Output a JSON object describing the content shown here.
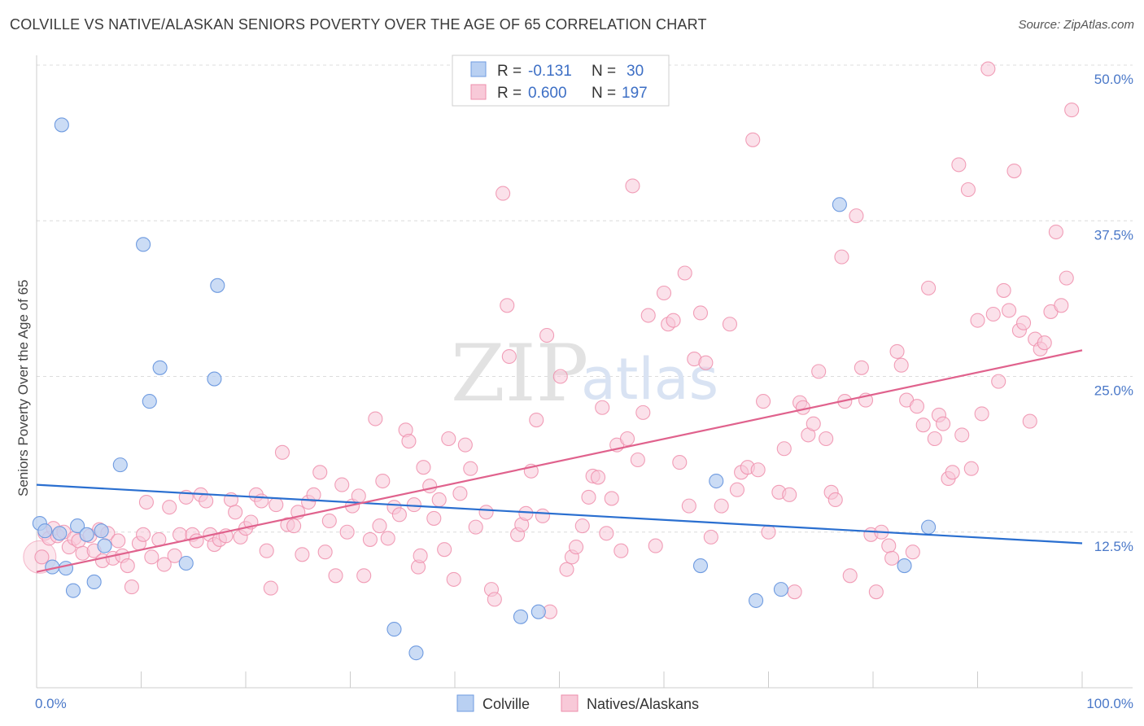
{
  "header": {
    "title": "COLVILLE VS NATIVE/ALASKAN SENIORS POVERTY OVER THE AGE OF 65 CORRELATION CHART",
    "source": "Source: ZipAtlas.com"
  },
  "watermark": {
    "zip": "ZIP",
    "atlas": "atlas"
  },
  "legend": {
    "r_label": "R =",
    "n_label": "N =",
    "rows": [
      {
        "r": "-0.131",
        "n": "30"
      },
      {
        "r": "0.600",
        "n": "197"
      }
    ]
  },
  "chart_data": {
    "type": "scatter",
    "title": "COLVILLE VS NATIVE/ALASKAN SENIORS POVERTY OVER THE AGE OF 65 CORRELATION CHART",
    "xlabel": "",
    "ylabel": "Seniors Poverty Over the Age of 65",
    "xlim": [
      0,
      100
    ],
    "ylim": [
      0,
      50
    ],
    "x_tick_labels": [
      "0.0%",
      "100.0%"
    ],
    "y_ticks": [
      12.5,
      25.0,
      37.5,
      50.0
    ],
    "y_tick_labels": [
      "12.5%",
      "25.0%",
      "37.5%",
      "50.0%"
    ],
    "grid": true,
    "legend_position": "top-center",
    "colors": {
      "colville_fill": "#b9d0f2",
      "colville_stroke": "#6f9be0",
      "colville_line": "#2a6fd0",
      "native_fill": "#f8c9d8",
      "native_stroke": "#ee8eab",
      "native_line": "#e0628d"
    },
    "series": [
      {
        "name": "Colville",
        "r": -0.131,
        "n": 30,
        "trend": {
          "x": [
            0,
            100
          ],
          "y": [
            16.3,
            11.6
          ]
        },
        "points": [
          [
            0.3,
            13.2
          ],
          [
            0.8,
            12.6
          ],
          [
            2.2,
            12.4
          ],
          [
            1.5,
            9.7
          ],
          [
            2.8,
            9.6
          ],
          [
            2.4,
            45.2
          ],
          [
            3.5,
            7.8
          ],
          [
            3.9,
            13.0
          ],
          [
            4.8,
            12.3
          ],
          [
            5.5,
            8.5
          ],
          [
            6.2,
            12.6
          ],
          [
            6.5,
            11.4
          ],
          [
            8.0,
            17.9
          ],
          [
            10.2,
            35.6
          ],
          [
            10.8,
            23.0
          ],
          [
            11.8,
            25.7
          ],
          [
            14.3,
            10.0
          ],
          [
            17.0,
            24.8
          ],
          [
            17.3,
            32.3
          ],
          [
            34.2,
            4.7
          ],
          [
            36.3,
            2.8
          ],
          [
            46.3,
            5.7
          ],
          [
            48.0,
            6.1
          ],
          [
            65.0,
            16.6
          ],
          [
            63.5,
            9.8
          ],
          [
            68.8,
            7.0
          ],
          [
            71.2,
            7.9
          ],
          [
            76.8,
            38.8
          ],
          [
            83.0,
            9.8
          ],
          [
            85.3,
            12.9
          ]
        ]
      },
      {
        "name": "Natives/Alaskans",
        "r": 0.6,
        "n": 197,
        "trend": {
          "x": [
            0,
            100
          ],
          "y": [
            9.3,
            27.1
          ]
        },
        "points": [
          [
            0.5,
            10.5
          ],
          [
            0.8,
            12.4
          ],
          [
            1.2,
            12.0
          ],
          [
            1.6,
            12.8
          ],
          [
            2.0,
            12.2
          ],
          [
            2.6,
            12.5
          ],
          [
            3.1,
            11.3
          ],
          [
            3.6,
            12.0
          ],
          [
            4.0,
            11.8
          ],
          [
            4.4,
            10.8
          ],
          [
            5.1,
            12.2
          ],
          [
            5.5,
            11.0
          ],
          [
            6.0,
            12.7
          ],
          [
            6.3,
            10.2
          ],
          [
            6.8,
            12.4
          ],
          [
            7.3,
            10.4
          ],
          [
            7.8,
            11.8
          ],
          [
            8.2,
            10.6
          ],
          [
            8.7,
            9.8
          ],
          [
            9.1,
            8.1
          ],
          [
            9.8,
            11.6
          ],
          [
            10.2,
            12.3
          ],
          [
            10.5,
            14.9
          ],
          [
            11.0,
            10.5
          ],
          [
            11.7,
            11.9
          ],
          [
            12.2,
            9.9
          ],
          [
            12.7,
            14.5
          ],
          [
            13.2,
            10.6
          ],
          [
            13.7,
            12.3
          ],
          [
            14.3,
            15.3
          ],
          [
            14.9,
            12.3
          ],
          [
            15.3,
            11.8
          ],
          [
            15.7,
            15.5
          ],
          [
            16.2,
            15.0
          ],
          [
            16.6,
            12.3
          ],
          [
            17.0,
            11.5
          ],
          [
            17.5,
            11.9
          ],
          [
            18.1,
            12.2
          ],
          [
            18.6,
            15.1
          ],
          [
            19.0,
            14.1
          ],
          [
            19.5,
            12.1
          ],
          [
            20.0,
            12.8
          ],
          [
            20.5,
            13.3
          ],
          [
            21.0,
            15.5
          ],
          [
            21.5,
            15.0
          ],
          [
            22.0,
            11.0
          ],
          [
            22.4,
            8.0
          ],
          [
            22.9,
            14.7
          ],
          [
            23.5,
            18.9
          ],
          [
            24.0,
            13.1
          ],
          [
            24.6,
            13.0
          ],
          [
            25.0,
            14.1
          ],
          [
            25.4,
            10.7
          ],
          [
            26.0,
            14.9
          ],
          [
            26.5,
            15.5
          ],
          [
            27.1,
            17.3
          ],
          [
            27.6,
            10.9
          ],
          [
            28.0,
            13.4
          ],
          [
            28.6,
            9.0
          ],
          [
            29.2,
            16.3
          ],
          [
            29.7,
            12.5
          ],
          [
            30.2,
            14.6
          ],
          [
            30.8,
            15.4
          ],
          [
            31.3,
            9.0
          ],
          [
            31.9,
            11.9
          ],
          [
            32.4,
            21.6
          ],
          [
            32.8,
            13.0
          ],
          [
            33.1,
            16.6
          ],
          [
            33.6,
            12.0
          ],
          [
            34.2,
            14.5
          ],
          [
            34.7,
            13.9
          ],
          [
            35.3,
            20.7
          ],
          [
            35.6,
            19.8
          ],
          [
            36.1,
            14.7
          ],
          [
            36.5,
            9.7
          ],
          [
            36.7,
            10.6
          ],
          [
            37.0,
            17.7
          ],
          [
            37.6,
            16.2
          ],
          [
            38.0,
            13.6
          ],
          [
            38.5,
            15.1
          ],
          [
            39.0,
            11.1
          ],
          [
            39.4,
            20.0
          ],
          [
            39.9,
            8.7
          ],
          [
            40.5,
            15.6
          ],
          [
            41.0,
            19.5
          ],
          [
            41.5,
            17.6
          ],
          [
            42.0,
            12.9
          ],
          [
            43.0,
            14.1
          ],
          [
            43.5,
            7.9
          ],
          [
            43.8,
            7.1
          ],
          [
            44.6,
            39.7
          ],
          [
            45.0,
            30.7
          ],
          [
            45.2,
            26.6
          ],
          [
            46.0,
            12.3
          ],
          [
            46.4,
            13.1
          ],
          [
            46.8,
            14.0
          ],
          [
            47.3,
            17.4
          ],
          [
            47.8,
            21.5
          ],
          [
            48.4,
            13.8
          ],
          [
            48.8,
            28.3
          ],
          [
            49.1,
            6.1
          ],
          [
            50.1,
            25.0
          ],
          [
            50.7,
            9.5
          ],
          [
            51.2,
            10.5
          ],
          [
            51.6,
            11.3
          ],
          [
            52.2,
            13.0
          ],
          [
            52.8,
            15.3
          ],
          [
            53.2,
            17.0
          ],
          [
            53.7,
            16.9
          ],
          [
            54.1,
            22.5
          ],
          [
            54.5,
            12.4
          ],
          [
            55.0,
            15.2
          ],
          [
            55.5,
            19.5
          ],
          [
            55.9,
            11.0
          ],
          [
            56.5,
            20.0
          ],
          [
            57.0,
            40.3
          ],
          [
            57.5,
            18.3
          ],
          [
            58.0,
            22.1
          ],
          [
            58.5,
            29.9
          ],
          [
            59.2,
            11.4
          ],
          [
            60.0,
            31.7
          ],
          [
            60.4,
            29.2
          ],
          [
            60.9,
            29.5
          ],
          [
            61.5,
            18.1
          ],
          [
            62.0,
            33.3
          ],
          [
            62.4,
            14.6
          ],
          [
            62.9,
            26.4
          ],
          [
            63.5,
            30.1
          ],
          [
            64.0,
            26.1
          ],
          [
            64.5,
            12.1
          ],
          [
            65.5,
            14.6
          ],
          [
            66.3,
            29.2
          ],
          [
            67.0,
            15.9
          ],
          [
            67.4,
            17.3
          ],
          [
            68.5,
            44.0
          ],
          [
            68.0,
            17.7
          ],
          [
            69.0,
            17.5
          ],
          [
            69.5,
            23.0
          ],
          [
            70.0,
            12.5
          ],
          [
            71.0,
            15.7
          ],
          [
            71.5,
            19.2
          ],
          [
            72.0,
            15.5
          ],
          [
            72.5,
            7.7
          ],
          [
            73.0,
            22.9
          ],
          [
            73.3,
            22.5
          ],
          [
            73.8,
            20.3
          ],
          [
            74.3,
            21.2
          ],
          [
            74.8,
            25.4
          ],
          [
            75.5,
            20.0
          ],
          [
            76.0,
            15.7
          ],
          [
            76.4,
            15.1
          ],
          [
            77.0,
            34.6
          ],
          [
            77.3,
            23.0
          ],
          [
            77.8,
            9.0
          ],
          [
            78.4,
            37.9
          ],
          [
            78.9,
            25.7
          ],
          [
            79.3,
            23.1
          ],
          [
            79.8,
            12.3
          ],
          [
            80.3,
            7.7
          ],
          [
            80.8,
            12.5
          ],
          [
            81.5,
            11.4
          ],
          [
            81.8,
            10.4
          ],
          [
            82.3,
            27.0
          ],
          [
            82.7,
            25.9
          ],
          [
            83.2,
            23.1
          ],
          [
            83.8,
            10.9
          ],
          [
            84.2,
            22.6
          ],
          [
            84.8,
            21.1
          ],
          [
            85.3,
            32.1
          ],
          [
            85.9,
            20.0
          ],
          [
            86.3,
            21.9
          ],
          [
            86.7,
            21.2
          ],
          [
            87.2,
            16.8
          ],
          [
            87.6,
            17.3
          ],
          [
            88.2,
            42.0
          ],
          [
            88.5,
            20.3
          ],
          [
            89.1,
            40.0
          ],
          [
            89.4,
            17.6
          ],
          [
            90.0,
            29.5
          ],
          [
            90.4,
            22.0
          ],
          [
            91.0,
            49.7
          ],
          [
            91.5,
            30.0
          ],
          [
            92.0,
            24.6
          ],
          [
            92.5,
            31.9
          ],
          [
            93.0,
            30.3
          ],
          [
            93.5,
            41.5
          ],
          [
            94.0,
            28.7
          ],
          [
            94.4,
            29.3
          ],
          [
            95.0,
            21.4
          ],
          [
            95.5,
            28.0
          ],
          [
            96.0,
            27.2
          ],
          [
            96.4,
            27.7
          ],
          [
            97.0,
            30.2
          ],
          [
            97.5,
            36.6
          ],
          [
            98.0,
            30.7
          ],
          [
            98.5,
            32.9
          ],
          [
            99.0,
            46.4
          ]
        ]
      }
    ]
  },
  "bottom_legend": {
    "items": [
      {
        "label": "Colville"
      },
      {
        "label": "Natives/Alaskans"
      }
    ]
  }
}
